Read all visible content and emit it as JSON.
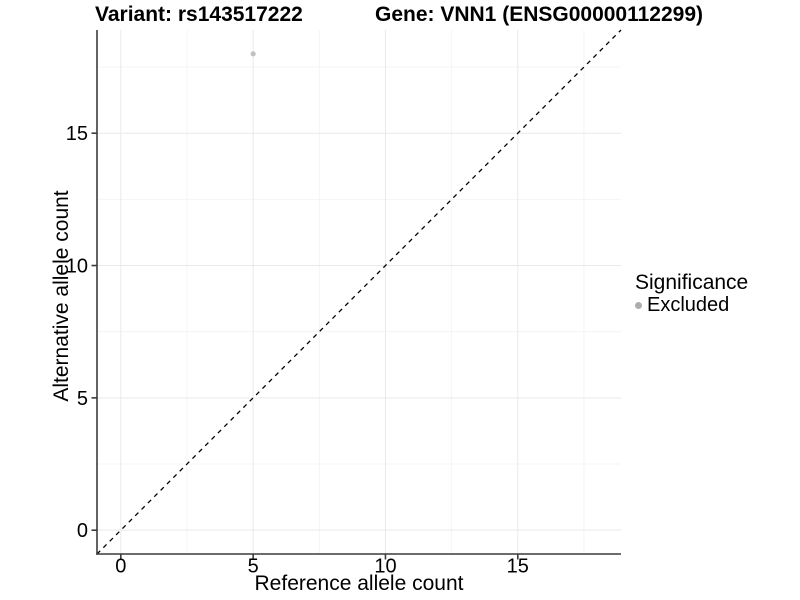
{
  "chart_data": {
    "type": "scatter",
    "title_left": "Variant: rs143517222",
    "title_right": "Gene: VNN1 (ENSG00000112299)",
    "xlabel": "Reference allele count",
    "ylabel": "Alternative allele count",
    "xlim": [
      -0.9,
      18.9
    ],
    "ylim": [
      -0.9,
      18.9
    ],
    "x_ticks": [
      0,
      5,
      10,
      15
    ],
    "y_ticks": [
      0,
      5,
      10,
      15
    ],
    "x_minor_ticks": [
      2.5,
      7.5,
      12.5,
      17.5
    ],
    "y_minor_ticks": [
      2.5,
      7.5,
      12.5,
      17.5
    ],
    "grid": "major+minor",
    "points": [
      {
        "x": 5,
        "y": 18,
        "significance": "Excluded"
      }
    ],
    "identity_line": {
      "style": "dashed",
      "from": [
        -0.9,
        -0.9
      ],
      "to": [
        18.9,
        18.9
      ]
    },
    "legend": {
      "title": "Significance",
      "position": "right",
      "entries": [
        {
          "label": "Excluded",
          "color": "#b9b9b9"
        }
      ]
    },
    "colors": {
      "background": "#ffffff",
      "point": "#c1c1c1",
      "legend_point": "#adadad",
      "grid_major": "#e9e9e9",
      "grid_minor": "#f4f4f4",
      "axis_line": "#3c3c3c",
      "tick": "#3c3c3c",
      "tick_label": "#000000",
      "dashed_line": "#000000"
    }
  }
}
